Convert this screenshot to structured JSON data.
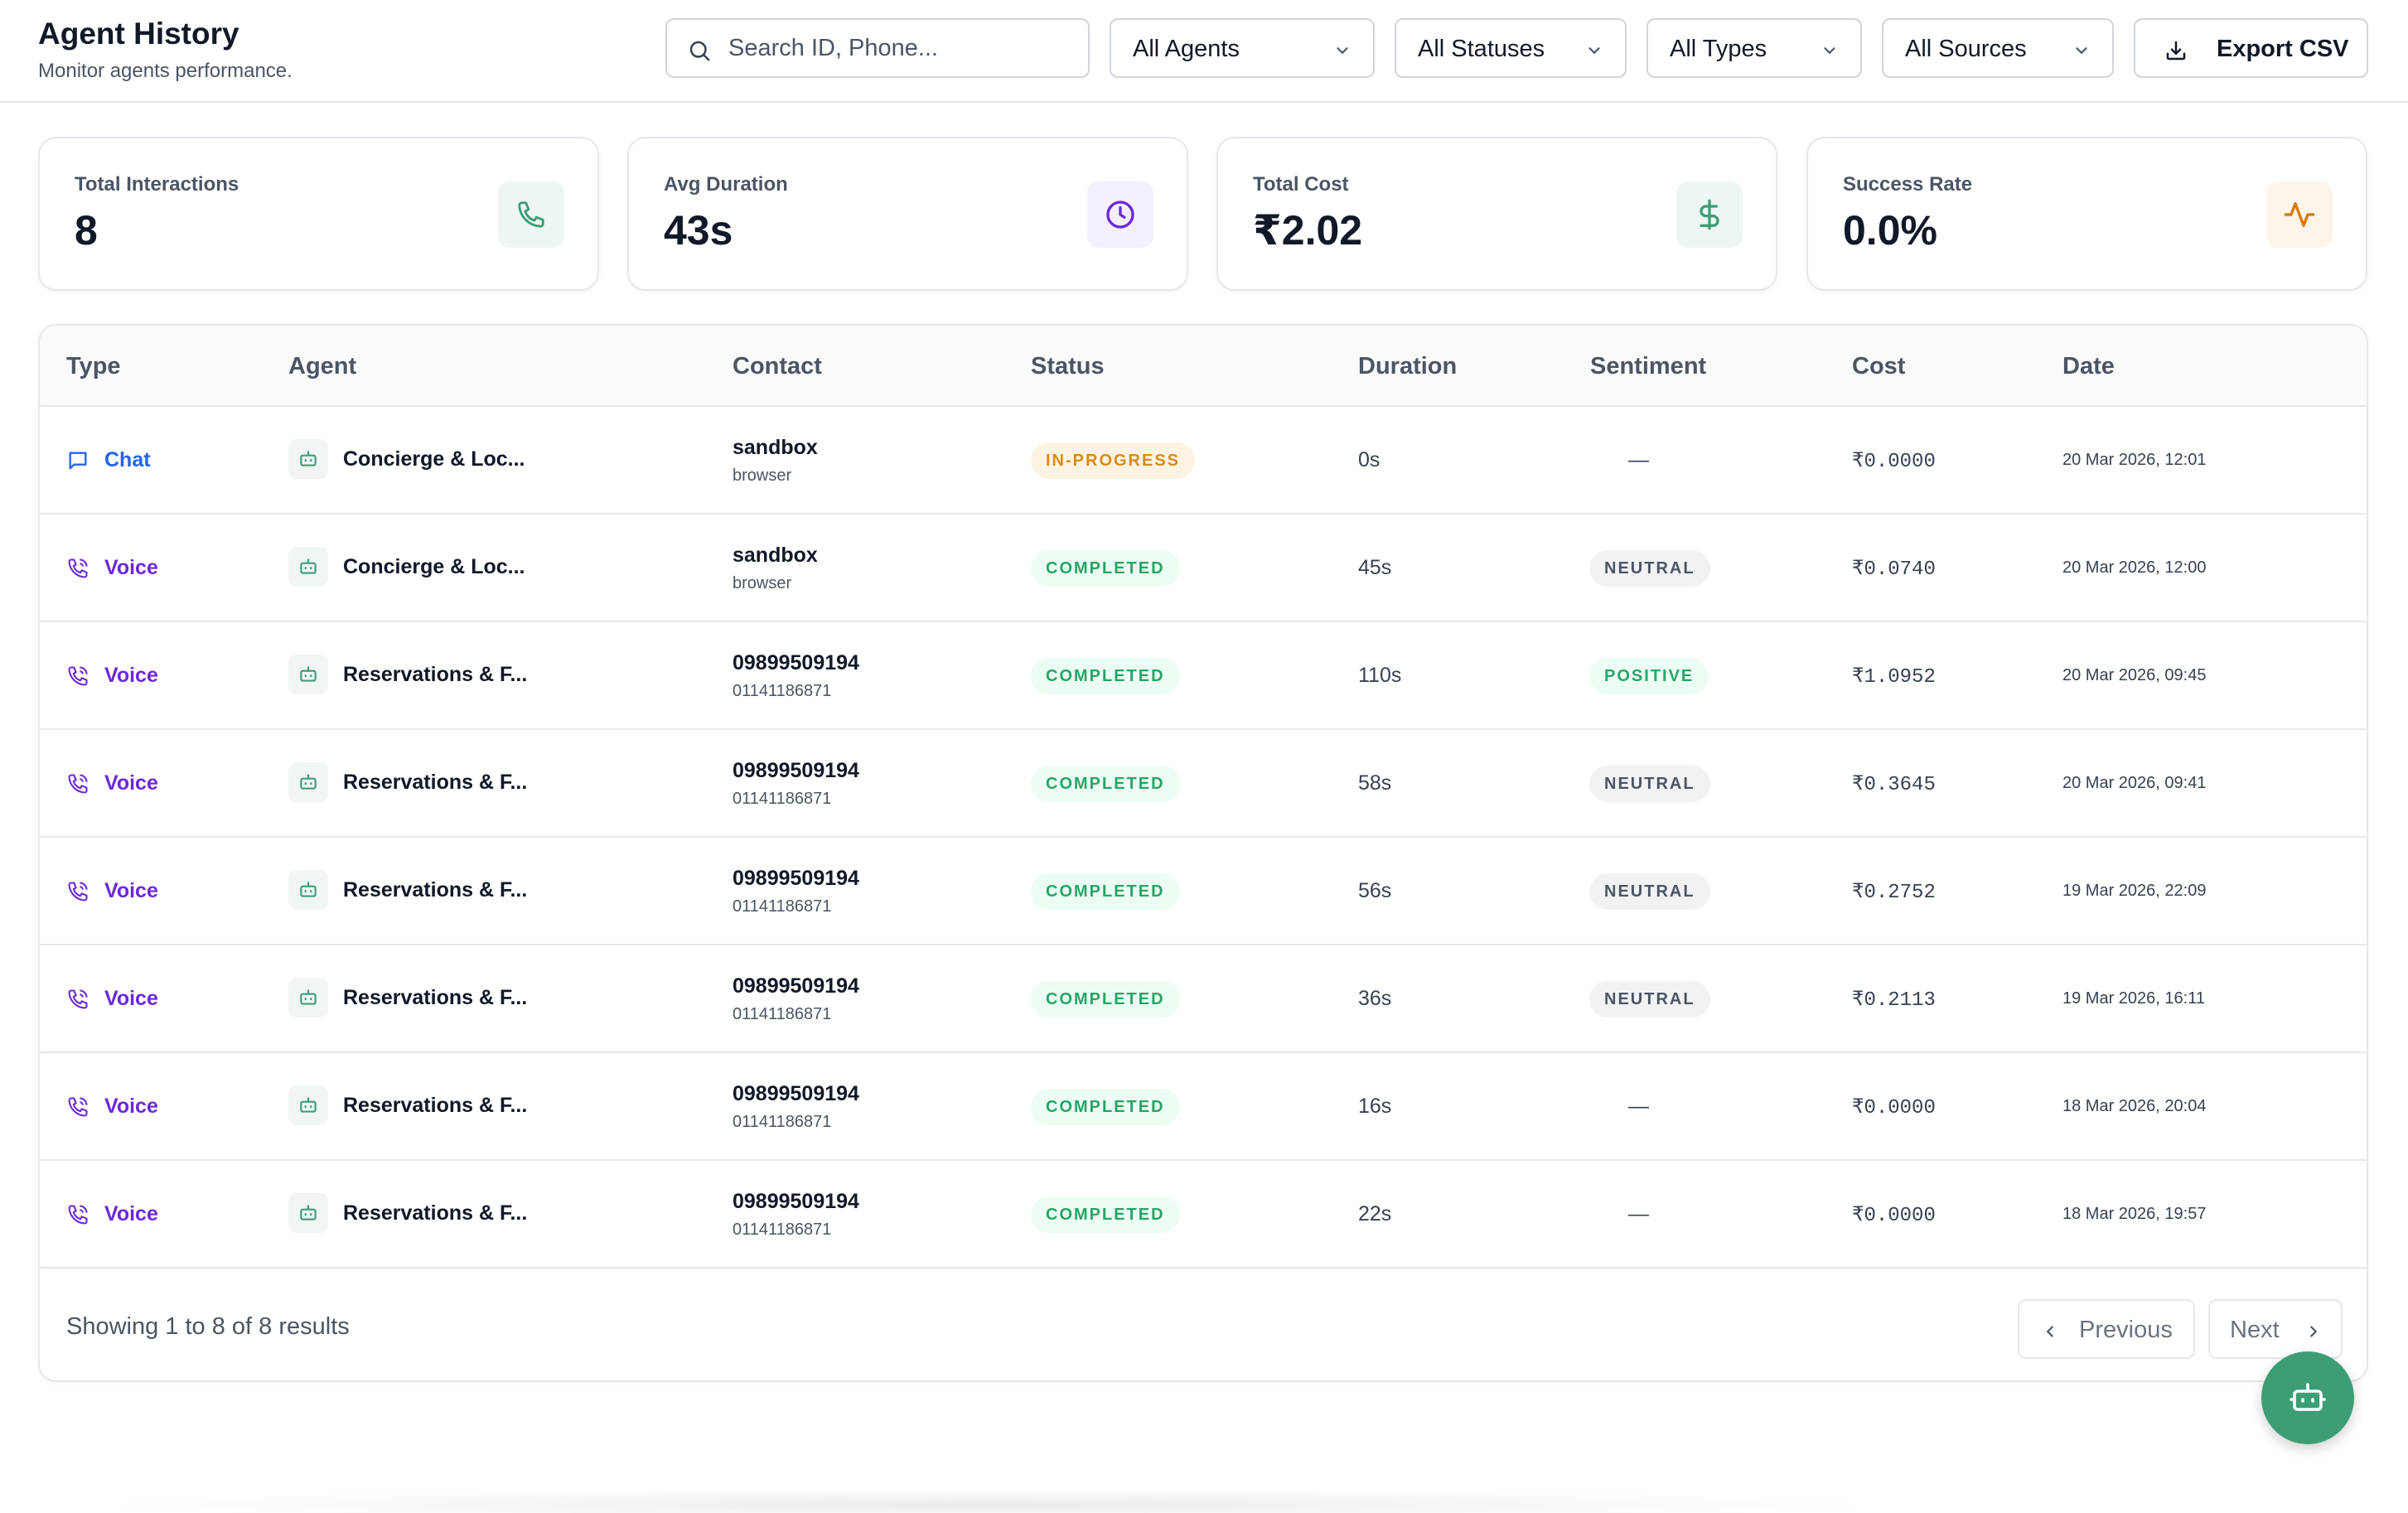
{
  "header": {
    "title": "Agent History",
    "subtitle": "Monitor agents performance.",
    "search_placeholder": "Search ID, Phone...",
    "filters": {
      "agents": "All Agents",
      "statuses": "All Statuses",
      "types": "All Types",
      "sources": "All Sources"
    },
    "export_label": "Export CSV"
  },
  "stats": {
    "total_interactions": {
      "label": "Total Interactions",
      "value": "8",
      "icon": "phone-icon",
      "color": "#3d9e76"
    },
    "avg_duration": {
      "label": "Avg Duration",
      "value": "43s",
      "icon": "clock-icon",
      "color": "#6d28d9"
    },
    "total_cost": {
      "label": "Total Cost",
      "value": "₹2.02",
      "icon": "dollar-icon",
      "color": "#3d9e76"
    },
    "success_rate": {
      "label": "Success Rate",
      "value": "0.0%",
      "icon": "activity-icon",
      "color": "#d97706"
    }
  },
  "table": {
    "columns": {
      "type": "Type",
      "agent": "Agent",
      "contact": "Contact",
      "status": "Status",
      "duration": "Duration",
      "sentiment": "Sentiment",
      "cost": "Cost",
      "date": "Date"
    },
    "rows": [
      {
        "type": "Chat",
        "agent": "Concierge & Loc...",
        "contact_primary": "sandbox",
        "contact_secondary": "browser",
        "status": "IN-PROGRESS",
        "duration": "0s",
        "sentiment": "—",
        "cost": "₹0.0000",
        "date": "20 Mar 2026, 12:01"
      },
      {
        "type": "Voice",
        "agent": "Concierge & Loc...",
        "contact_primary": "sandbox",
        "contact_secondary": "browser",
        "status": "COMPLETED",
        "duration": "45s",
        "sentiment": "NEUTRAL",
        "cost": "₹0.0740",
        "date": "20 Mar 2026, 12:00"
      },
      {
        "type": "Voice",
        "agent": "Reservations & F...",
        "contact_primary": "09899509194",
        "contact_secondary": "01141186871",
        "status": "COMPLETED",
        "duration": "110s",
        "sentiment": "POSITIVE",
        "cost": "₹1.0952",
        "date": "20 Mar 2026, 09:45"
      },
      {
        "type": "Voice",
        "agent": "Reservations & F...",
        "contact_primary": "09899509194",
        "contact_secondary": "01141186871",
        "status": "COMPLETED",
        "duration": "58s",
        "sentiment": "NEUTRAL",
        "cost": "₹0.3645",
        "date": "20 Mar 2026, 09:41"
      },
      {
        "type": "Voice",
        "agent": "Reservations & F...",
        "contact_primary": "09899509194",
        "contact_secondary": "01141186871",
        "status": "COMPLETED",
        "duration": "56s",
        "sentiment": "NEUTRAL",
        "cost": "₹0.2752",
        "date": "19 Mar 2026, 22:09"
      },
      {
        "type": "Voice",
        "agent": "Reservations & F...",
        "contact_primary": "09899509194",
        "contact_secondary": "01141186871",
        "status": "COMPLETED",
        "duration": "36s",
        "sentiment": "NEUTRAL",
        "cost": "₹0.2113",
        "date": "19 Mar 2026, 16:11"
      },
      {
        "type": "Voice",
        "agent": "Reservations & F...",
        "contact_primary": "09899509194",
        "contact_secondary": "01141186871",
        "status": "COMPLETED",
        "duration": "16s",
        "sentiment": "—",
        "cost": "₹0.0000",
        "date": "18 Mar 2026, 20:04"
      },
      {
        "type": "Voice",
        "agent": "Reservations & F...",
        "contact_primary": "09899509194",
        "contact_secondary": "01141186871",
        "status": "COMPLETED",
        "duration": "22s",
        "sentiment": "—",
        "cost": "₹0.0000",
        "date": "18 Mar 2026, 19:57"
      }
    ]
  },
  "pagination": {
    "summary": "Showing 1 to 8 of 8 results",
    "previous_label": "Previous",
    "next_label": "Next"
  },
  "colors": {
    "accent_green": "#3d9e76",
    "chat_blue": "#2563eb",
    "voice_purple": "#6d28d9",
    "progress_orange": "#d98a1c",
    "completed_green": "#27a567"
  }
}
